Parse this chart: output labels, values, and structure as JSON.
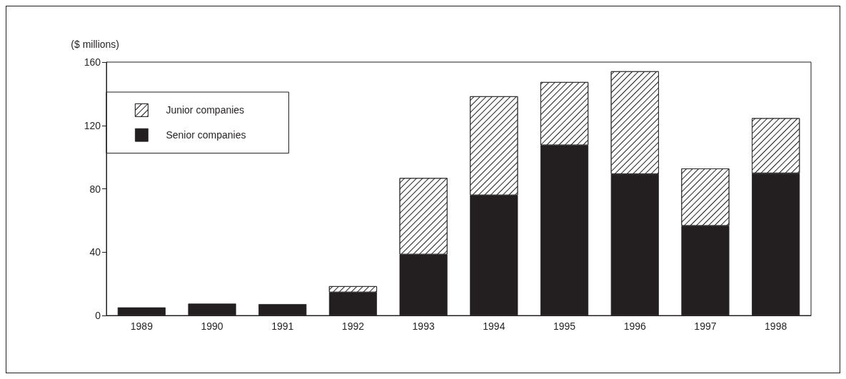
{
  "chart_data": {
    "type": "bar",
    "ylabel": "($ millions)",
    "categories": [
      "1989",
      "1990",
      "1991",
      "1992",
      "1993",
      "1994",
      "1995",
      "1996",
      "1997",
      "1998"
    ],
    "series": [
      {
        "name": "Senior companies",
        "color": "#231f20",
        "values": [
          5.1,
          7.5,
          7.2,
          14.6,
          38.5,
          75.9,
          107.5,
          89.3,
          56.6,
          89.8
        ]
      },
      {
        "name": "Junior companies",
        "color": "#ffffff",
        "values": [
          null,
          null,
          null,
          3.9,
          48.3,
          62.5,
          39.9,
          64.9,
          36.2,
          34.8
        ]
      }
    ],
    "stacked": true,
    "ylim": [
      0,
      160
    ],
    "yticks": [
      0,
      40,
      80,
      120,
      160
    ],
    "grid": false,
    "legend": "top left"
  }
}
